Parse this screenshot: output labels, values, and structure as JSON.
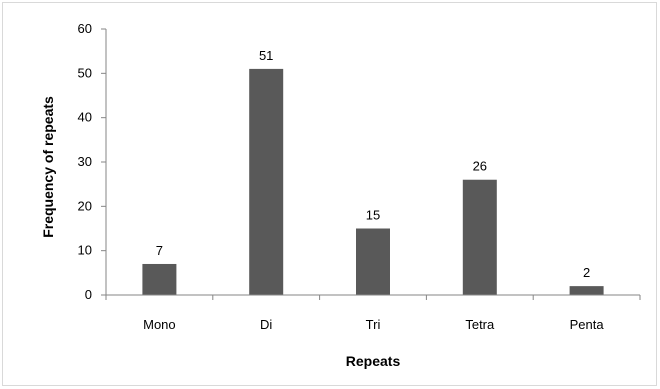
{
  "chart_data": {
    "type": "bar",
    "title": "",
    "xlabel": "Repeats",
    "ylabel": "Frequency of repeats",
    "categories": [
      "Mono",
      "Di",
      "Tri",
      "Tetra",
      "Penta"
    ],
    "values": [
      7,
      51,
      15,
      26,
      2
    ],
    "data_labels": [
      "7",
      "51",
      "15",
      "26",
      "2"
    ],
    "ylim": [
      0,
      60
    ],
    "yticks": [
      "0",
      "10",
      "20",
      "30",
      "40",
      "50",
      "60"
    ],
    "grid": false,
    "legend": "none",
    "bar_color": "#595959"
  }
}
